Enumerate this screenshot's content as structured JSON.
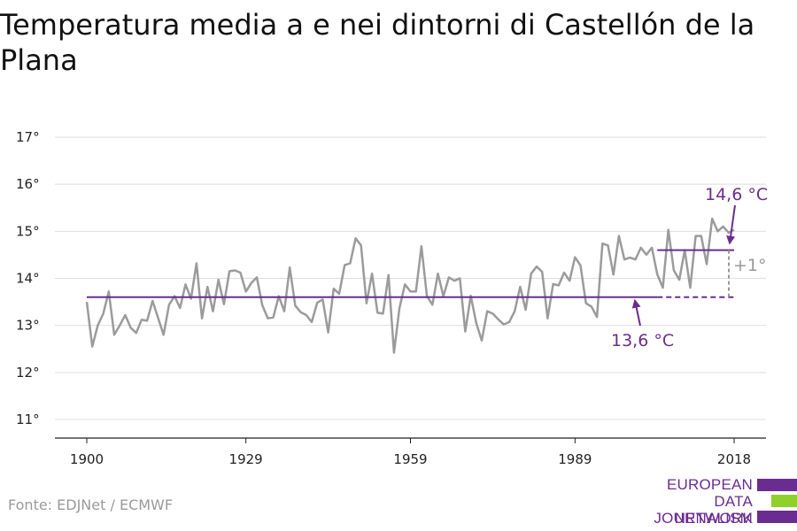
{
  "title": "Temperatura media a e nei dintorni di Castellón de la Plana",
  "source": "Fonte: EDJNet / ECMWF",
  "logo": {
    "lines": [
      "EUROPEAN",
      "DATA JOURNALISM",
      "NETWORK"
    ],
    "colors": {
      "purple": "#6b2c91",
      "green": "#8fd12a"
    }
  },
  "colors": {
    "line": "#9b9b9b",
    "accent": "#6b2c91",
    "grid": "#dddddd",
    "diff": "#999999"
  },
  "chart_data": {
    "type": "line",
    "title": "Temperatura media a e nei dintorni di Castellón de la Plana",
    "xlabel": "",
    "ylabel": "",
    "xlim": [
      1900,
      2018
    ],
    "ylim": [
      11,
      17
    ],
    "x_ticks": [
      1900,
      1929,
      1959,
      1989,
      2018
    ],
    "x_tick_labels": [
      "1900",
      "1929",
      "1959",
      "1989",
      "2018"
    ],
    "y_ticks": [
      11,
      12,
      13,
      14,
      15,
      16,
      17
    ],
    "y_tick_labels": [
      "11°",
      "12°",
      "13°",
      "14°",
      "15°",
      "16°",
      "17°"
    ],
    "grid": true,
    "series": [
      {
        "x": [
          1900,
          1901,
          1902,
          1903,
          1904,
          1905,
          1906,
          1907,
          1908,
          1909,
          1910,
          1911,
          1912,
          1913,
          1914,
          1915,
          1916,
          1917,
          1918,
          1919,
          1920,
          1921,
          1922,
          1923,
          1924,
          1925,
          1926,
          1927,
          1928,
          1929,
          1930,
          1931,
          1932,
          1933,
          1934,
          1935,
          1936,
          1937,
          1938,
          1939,
          1940,
          1941,
          1942,
          1943,
          1944,
          1945,
          1946,
          1947,
          1948,
          1949,
          1950,
          1951,
          1952,
          1953,
          1954,
          1955,
          1956,
          1957,
          1958,
          1959,
          1960,
          1961,
          1962,
          1963,
          1964,
          1965,
          1966,
          1967,
          1968,
          1969,
          1970,
          1971,
          1972,
          1973,
          1974,
          1975,
          1976,
          1977,
          1978,
          1979,
          1980,
          1981,
          1982,
          1983,
          1984,
          1985,
          1986,
          1987,
          1988,
          1989,
          1990,
          1991,
          1992,
          1993,
          1994,
          1995,
          1996,
          1997,
          1998,
          1999,
          2000,
          2001,
          2002,
          2003,
          2004,
          2005,
          2006,
          2007,
          2008,
          2009,
          2010,
          2011,
          2012,
          2013,
          2014,
          2015,
          2016,
          2017,
          2018
        ],
        "values": [
          13.5,
          12.55,
          13.0,
          13.25,
          13.72,
          12.8,
          13.0,
          13.22,
          12.95,
          12.84,
          13.12,
          13.1,
          13.52,
          13.16,
          12.8,
          13.44,
          13.62,
          13.37,
          13.87,
          13.57,
          14.32,
          13.15,
          13.82,
          13.3,
          13.97,
          13.45,
          14.15,
          14.17,
          14.12,
          13.72,
          13.9,
          14.02,
          13.43,
          13.15,
          13.17,
          13.62,
          13.3,
          14.23,
          13.42,
          13.28,
          13.22,
          13.07,
          13.48,
          13.55,
          12.85,
          13.78,
          13.67,
          14.28,
          14.32,
          14.85,
          14.7,
          13.47,
          14.1,
          13.27,
          13.25,
          14.07,
          12.42,
          13.37,
          13.87,
          13.72,
          13.72,
          14.68,
          13.62,
          13.44,
          14.1,
          13.62,
          14.02,
          13.95,
          14.0,
          12.87,
          13.63,
          13.05,
          12.68,
          13.3,
          13.25,
          13.13,
          13.02,
          13.07,
          13.3,
          13.82,
          13.33,
          14.1,
          14.25,
          14.14,
          13.15,
          13.88,
          13.85,
          14.12,
          13.95,
          14.45,
          14.27,
          13.47,
          13.4,
          13.18,
          14.74,
          14.7,
          14.08,
          14.9,
          14.4,
          14.44,
          14.4,
          14.65,
          14.5,
          14.65,
          14.08,
          13.8,
          15.03,
          14.17,
          13.97,
          14.6,
          13.8,
          14.9,
          14.9,
          14.3,
          15.27,
          15.0,
          15.1,
          14.97,
          15.03
        ]
      }
    ],
    "reference_lines": [
      {
        "label": "13,6 °C",
        "value": 13.6,
        "from": 1900,
        "to": 2018,
        "solid_to": 2004
      },
      {
        "label": "14,6 °C",
        "value": 14.6,
        "from": 2004,
        "to": 2018
      }
    ],
    "difference_label": "+1°"
  }
}
